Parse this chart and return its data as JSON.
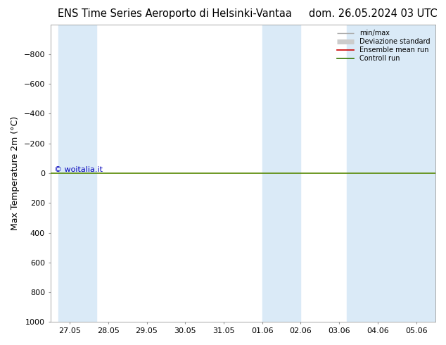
{
  "title_left": "ENS Time Series Aeroporto di Helsinki-Vantaa",
  "title_right": "dom. 26.05.2024 03 UTC",
  "ylabel": "Max Temperature 2m (°C)",
  "ylim_inv": [
    1000,
    -1000
  ],
  "yticks": [
    -800,
    -600,
    -400,
    -200,
    0,
    200,
    400,
    600,
    800,
    1000
  ],
  "xtick_labels": [
    "27.05",
    "28.05",
    "29.05",
    "30.05",
    "31.05",
    "01.06",
    "02.06",
    "03.06",
    "04.06",
    "05.06"
  ],
  "n_xticks": 10,
  "shaded_bands": [
    {
      "xmin": -0.3,
      "xmax": 0.7
    },
    {
      "xmin": 5.0,
      "xmax": 6.0
    },
    {
      "xmin": 7.2,
      "xmax": 9.5
    }
  ],
  "hline_y": 0,
  "hline_color": "#558800",
  "background_color": "#ffffff",
  "band_color": "#daeaf7",
  "watermark": "© woitalia.it",
  "watermark_color": "#0000bb",
  "legend_items": [
    {
      "label": "min/max",
      "color": "#aaaaaa",
      "lw": 1.0
    },
    {
      "label": "Deviazione standard",
      "color": "#cccccc",
      "lw": 5.0
    },
    {
      "label": "Ensemble mean run",
      "color": "#cc0000",
      "lw": 1.2
    },
    {
      "label": "Controll run",
      "color": "#337700",
      "lw": 1.2
    }
  ],
  "title_fontsize": 10.5,
  "ylabel_fontsize": 9,
  "tick_fontsize": 8,
  "watermark_fontsize": 8
}
